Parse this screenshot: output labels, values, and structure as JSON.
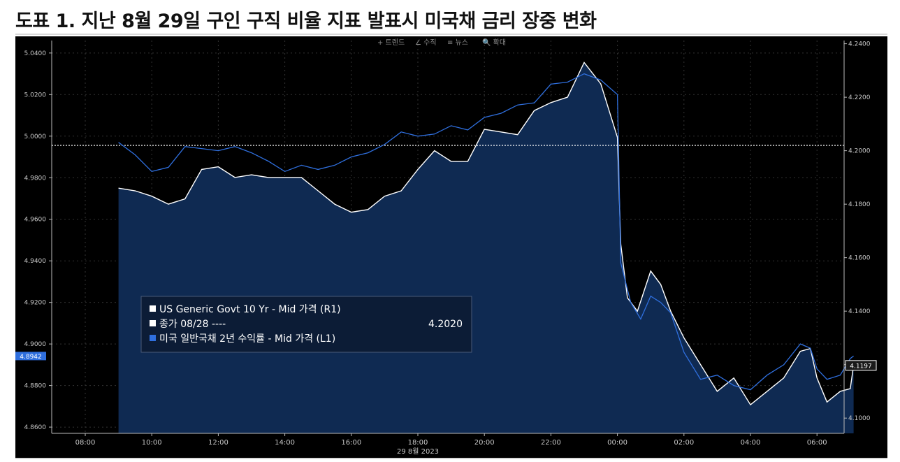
{
  "page": {
    "title": "도표 1. 지난 8월 29일 구인 구직 비율 지표 발표시 미국채 금리 장중 변화"
  },
  "toolbar": {
    "items": [
      "+ 트렌드",
      "∠ 수직",
      "≡ 뉴스",
      "🔍 확대"
    ]
  },
  "legend": {
    "line1": "US Generic Govt 10 Yr - Mid 가격 (R1)",
    "line2_label": "종가 08/28 ----",
    "line2_value": "4.2020",
    "line3": "미국 일반국채 2년 수익률 - Mid 가격 (L1)"
  },
  "colors": {
    "background": "#000000",
    "us10y": "#ffffff",
    "us2y": "#2f6fde",
    "area": "#0f2a52",
    "reference_line": "#ffffff",
    "left_tag": "#2f6fde"
  },
  "chart_data": {
    "type": "line",
    "x_unit": "hours since 08:00 (29 Aug 2023)",
    "xlabel": "29 8월 2023",
    "x_ticks": [
      "08:00",
      "10:00",
      "12:00",
      "14:00",
      "16:00",
      "18:00",
      "20:00",
      "22:00",
      "00:00",
      "02:00",
      "04:00",
      "06:00"
    ],
    "x_range": [
      0,
      23.1
    ],
    "left_axis": {
      "ticks": [
        "5.0400",
        "5.0200",
        "5.0000",
        "4.9800",
        "4.9600",
        "4.9400",
        "4.9200",
        "4.9000",
        "4.8800",
        "4.8600"
      ],
      "range": [
        4.857,
        5.046
      ],
      "last_value_tag": "4.8942"
    },
    "right_axis": {
      "ticks": [
        "4.2400",
        "4.2200",
        "4.2000",
        "4.1800",
        "4.1600",
        "4.1400",
        "4.1200",
        "4.1000"
      ],
      "range": [
        4.0943,
        4.2412
      ],
      "last_value_tag": "4.1197"
    },
    "reference_line": {
      "axis": "right",
      "value": 4.202,
      "label": "종가 08/28"
    },
    "series": [
      {
        "name": "US Generic Govt 10 Yr - Mid 가격 (R1)",
        "axis": "right",
        "points": [
          [
            1.0,
            4.186
          ],
          [
            1.5,
            4.185
          ],
          [
            2.0,
            4.183
          ],
          [
            2.5,
            4.18
          ],
          [
            3.0,
            4.182
          ],
          [
            3.5,
            4.193
          ],
          [
            4.0,
            4.194
          ],
          [
            4.5,
            4.19
          ],
          [
            5.0,
            4.191
          ],
          [
            5.5,
            4.19
          ],
          [
            6.0,
            4.19
          ],
          [
            6.5,
            4.19
          ],
          [
            7.0,
            4.185
          ],
          [
            7.5,
            4.18
          ],
          [
            8.0,
            4.177
          ],
          [
            8.5,
            4.178
          ],
          [
            9.0,
            4.183
          ],
          [
            9.5,
            4.185
          ],
          [
            10.0,
            4.193
          ],
          [
            10.5,
            4.2
          ],
          [
            11.0,
            4.196
          ],
          [
            11.5,
            4.196
          ],
          [
            12.0,
            4.208
          ],
          [
            12.5,
            4.207
          ],
          [
            13.0,
            4.206
          ],
          [
            13.5,
            4.215
          ],
          [
            14.0,
            4.218
          ],
          [
            14.5,
            4.22
          ],
          [
            15.0,
            4.233
          ],
          [
            15.5,
            4.225
          ],
          [
            15.8,
            4.213
          ],
          [
            16.0,
            4.205
          ],
          [
            16.1,
            4.165
          ],
          [
            16.3,
            4.145
          ],
          [
            16.6,
            4.14
          ],
          [
            17.0,
            4.155
          ],
          [
            17.3,
            4.15
          ],
          [
            17.6,
            4.14
          ],
          [
            18.0,
            4.13
          ],
          [
            18.5,
            4.12
          ],
          [
            19.0,
            4.11
          ],
          [
            19.5,
            4.115
          ],
          [
            20.0,
            4.105
          ],
          [
            20.5,
            4.11
          ],
          [
            21.0,
            4.115
          ],
          [
            21.5,
            4.125
          ],
          [
            21.8,
            4.126
          ],
          [
            22.0,
            4.115
          ],
          [
            22.3,
            4.106
          ],
          [
            22.7,
            4.11
          ],
          [
            23.0,
            4.111
          ],
          [
            23.1,
            4.1197
          ]
        ]
      },
      {
        "name": "미국 일반국채 2년 수익률 - Mid 가격 (L1)",
        "axis": "left",
        "points": [
          [
            1.0,
            4.997
          ],
          [
            1.5,
            4.991
          ],
          [
            2.0,
            4.983
          ],
          [
            2.5,
            4.985
          ],
          [
            3.0,
            4.995
          ],
          [
            3.5,
            4.994
          ],
          [
            4.0,
            4.993
          ],
          [
            4.5,
            4.995
          ],
          [
            5.0,
            4.992
          ],
          [
            5.5,
            4.988
          ],
          [
            6.0,
            4.983
          ],
          [
            6.5,
            4.986
          ],
          [
            7.0,
            4.984
          ],
          [
            7.5,
            4.986
          ],
          [
            8.0,
            4.99
          ],
          [
            8.5,
            4.992
          ],
          [
            9.0,
            4.996
          ],
          [
            9.5,
            5.002
          ],
          [
            10.0,
            5.0
          ],
          [
            10.5,
            5.001
          ],
          [
            11.0,
            5.005
          ],
          [
            11.5,
            5.003
          ],
          [
            12.0,
            5.009
          ],
          [
            12.5,
            5.011
          ],
          [
            13.0,
            5.015
          ],
          [
            13.5,
            5.016
          ],
          [
            14.0,
            5.025
          ],
          [
            14.5,
            5.026
          ],
          [
            15.0,
            5.03
          ],
          [
            15.5,
            5.027
          ],
          [
            16.0,
            5.02
          ],
          [
            16.1,
            4.939
          ],
          [
            16.4,
            4.92
          ],
          [
            16.7,
            4.912
          ],
          [
            17.0,
            4.923
          ],
          [
            17.3,
            4.92
          ],
          [
            17.6,
            4.915
          ],
          [
            18.0,
            4.896
          ],
          [
            18.5,
            4.883
          ],
          [
            19.0,
            4.885
          ],
          [
            19.5,
            4.88
          ],
          [
            20.0,
            4.878
          ],
          [
            20.5,
            4.885
          ],
          [
            21.0,
            4.89
          ],
          [
            21.5,
            4.9
          ],
          [
            21.8,
            4.898
          ],
          [
            22.0,
            4.888
          ],
          [
            22.3,
            4.883
          ],
          [
            22.7,
            4.885
          ],
          [
            23.0,
            4.893
          ],
          [
            23.1,
            4.8942
          ]
        ]
      }
    ]
  }
}
